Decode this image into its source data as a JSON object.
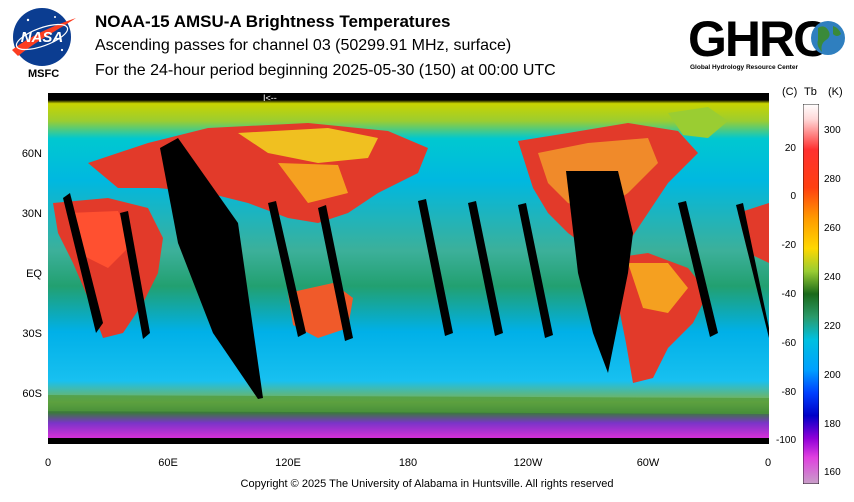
{
  "header": {
    "org_short": "MSFC",
    "title": "NOAA-15 AMSU-A Brightness Temperatures",
    "subtitle": "Ascending passes for channel 03 (50299.91 MHz, surface)",
    "period": "For the 24-hour period beginning 2025-05-30 (150) at 00:00 UTC"
  },
  "logos": {
    "nasa": "NASA",
    "ghrc": "GHRC",
    "ghrc_caption": "Global Hydrology Resource Center"
  },
  "map": {
    "lat_labels": [
      "60N",
      "30N",
      "EQ",
      "30S",
      "60S"
    ],
    "lon_labels": [
      "0",
      "60E",
      "120E",
      "180",
      "120W",
      "60W",
      "0"
    ],
    "marker": "I<--"
  },
  "colorbar": {
    "left_header": "(C)",
    "mid_header": "Tb",
    "right_header": "(K)",
    "celsius_ticks": [
      "20",
      "0",
      "-20",
      "-40",
      "-60",
      "-80",
      "-100"
    ],
    "kelvin_ticks": [
      "300",
      "280",
      "260",
      "240",
      "220",
      "200",
      "180",
      "160"
    ]
  },
  "footer": {
    "copyright": "Copyright © 2025 The University of Alabama in Huntsville.  All rights reserved"
  }
}
